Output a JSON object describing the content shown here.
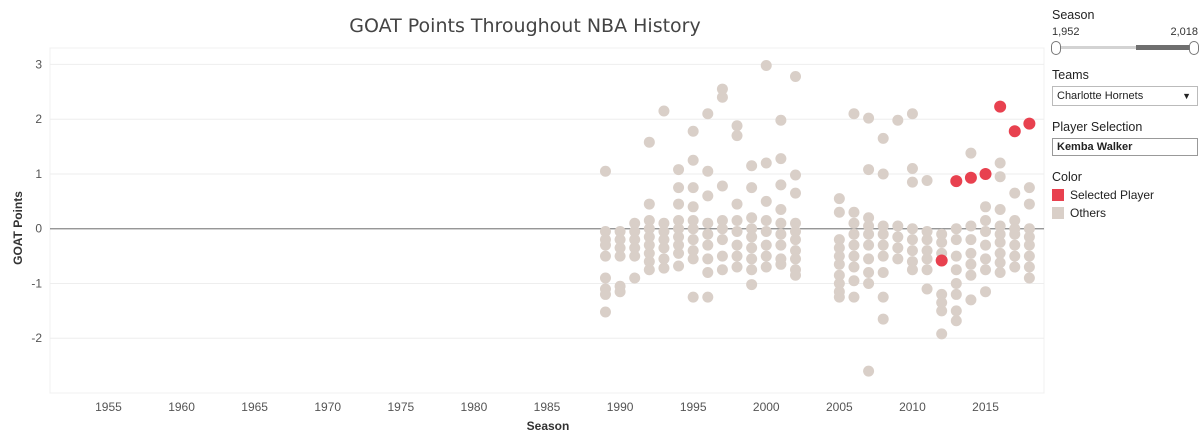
{
  "chart_data": {
    "type": "scatter",
    "title": "GOAT Points Throughout NBA History",
    "xlabel": "Season",
    "ylabel": "GOAT Points",
    "xlim": [
      1951,
      2019
    ],
    "ylim": [
      -3,
      3.3
    ],
    "x_ticks": [
      1955,
      1960,
      1965,
      1970,
      1975,
      1980,
      1985,
      1990,
      1995,
      2000,
      2005,
      2010,
      2015
    ],
    "y_ticks": [
      3,
      2,
      1,
      0,
      -1,
      -2
    ],
    "colors": {
      "selected": "#e8414f",
      "others": "#d9cfc8"
    },
    "series": [
      {
        "name": "Selected Player",
        "points": [
          [
            2012,
            -0.58
          ],
          [
            2013,
            0.87
          ],
          [
            2014,
            0.93
          ],
          [
            2015,
            1.0
          ],
          [
            2016,
            2.23
          ],
          [
            2017,
            1.78
          ],
          [
            2018,
            1.92
          ]
        ]
      },
      {
        "name": "Others",
        "points": [
          [
            1989,
            1.05
          ],
          [
            1989,
            -0.05
          ],
          [
            1989,
            -0.2
          ],
          [
            1989,
            -0.3
          ],
          [
            1989,
            -0.5
          ],
          [
            1989,
            -0.9
          ],
          [
            1989,
            -1.1
          ],
          [
            1989,
            -1.2
          ],
          [
            1989,
            -1.52
          ],
          [
            1990,
            -0.05
          ],
          [
            1990,
            -0.2
          ],
          [
            1990,
            -0.35
          ],
          [
            1990,
            -0.5
          ],
          [
            1990,
            -1.05
          ],
          [
            1990,
            -1.15
          ],
          [
            1991,
            0.1
          ],
          [
            1991,
            -0.05
          ],
          [
            1991,
            -0.2
          ],
          [
            1991,
            -0.35
          ],
          [
            1991,
            -0.5
          ],
          [
            1991,
            -0.9
          ],
          [
            1992,
            1.58
          ],
          [
            1992,
            0.45
          ],
          [
            1992,
            0.15
          ],
          [
            1992,
            0.0
          ],
          [
            1992,
            -0.15
          ],
          [
            1992,
            -0.3
          ],
          [
            1992,
            -0.45
          ],
          [
            1992,
            -0.6
          ],
          [
            1992,
            -0.75
          ],
          [
            1993,
            2.15
          ],
          [
            1993,
            0.1
          ],
          [
            1993,
            -0.05
          ],
          [
            1993,
            -0.2
          ],
          [
            1993,
            -0.35
          ],
          [
            1993,
            -0.55
          ],
          [
            1993,
            -0.72
          ],
          [
            1994,
            1.08
          ],
          [
            1994,
            0.75
          ],
          [
            1994,
            0.45
          ],
          [
            1994,
            0.15
          ],
          [
            1994,
            0.0
          ],
          [
            1994,
            -0.15
          ],
          [
            1994,
            -0.3
          ],
          [
            1994,
            -0.45
          ],
          [
            1994,
            -0.68
          ],
          [
            1995,
            1.78
          ],
          [
            1995,
            1.25
          ],
          [
            1995,
            0.75
          ],
          [
            1995,
            0.4
          ],
          [
            1995,
            0.15
          ],
          [
            1995,
            0.0
          ],
          [
            1995,
            -0.2
          ],
          [
            1995,
            -0.4
          ],
          [
            1995,
            -0.55
          ],
          [
            1995,
            -1.25
          ],
          [
            1996,
            2.1
          ],
          [
            1996,
            1.05
          ],
          [
            1996,
            0.6
          ],
          [
            1996,
            0.1
          ],
          [
            1996,
            -0.1
          ],
          [
            1996,
            -0.3
          ],
          [
            1996,
            -0.55
          ],
          [
            1996,
            -0.8
          ],
          [
            1996,
            -1.25
          ],
          [
            1997,
            2.55
          ],
          [
            1997,
            2.4
          ],
          [
            1997,
            0.78
          ],
          [
            1997,
            0.15
          ],
          [
            1997,
            0.0
          ],
          [
            1997,
            -0.2
          ],
          [
            1997,
            -0.5
          ],
          [
            1997,
            -0.75
          ],
          [
            1998,
            1.88
          ],
          [
            1998,
            1.7
          ],
          [
            1998,
            0.45
          ],
          [
            1998,
            0.15
          ],
          [
            1998,
            -0.05
          ],
          [
            1998,
            -0.3
          ],
          [
            1998,
            -0.5
          ],
          [
            1998,
            -0.7
          ],
          [
            1999,
            1.15
          ],
          [
            1999,
            0.75
          ],
          [
            1999,
            0.2
          ],
          [
            1999,
            0.0
          ],
          [
            1999,
            -0.15
          ],
          [
            1999,
            -0.35
          ],
          [
            1999,
            -0.55
          ],
          [
            1999,
            -0.75
          ],
          [
            1999,
            -1.02
          ],
          [
            2000,
            2.98
          ],
          [
            2000,
            1.2
          ],
          [
            2000,
            0.5
          ],
          [
            2000,
            0.15
          ],
          [
            2000,
            -0.05
          ],
          [
            2000,
            -0.3
          ],
          [
            2000,
            -0.5
          ],
          [
            2000,
            -0.7
          ],
          [
            2001,
            1.98
          ],
          [
            2001,
            1.28
          ],
          [
            2001,
            0.8
          ],
          [
            2001,
            0.35
          ],
          [
            2001,
            0.1
          ],
          [
            2001,
            -0.1
          ],
          [
            2001,
            -0.3
          ],
          [
            2001,
            -0.55
          ],
          [
            2001,
            -0.65
          ],
          [
            2002,
            2.78
          ],
          [
            2002,
            0.98
          ],
          [
            2002,
            0.65
          ],
          [
            2002,
            0.1
          ],
          [
            2002,
            -0.05
          ],
          [
            2002,
            -0.2
          ],
          [
            2002,
            -0.4
          ],
          [
            2002,
            -0.55
          ],
          [
            2002,
            -0.75
          ],
          [
            2002,
            -0.85
          ],
          [
            2005,
            0.55
          ],
          [
            2005,
            0.3
          ],
          [
            2005,
            -0.2
          ],
          [
            2005,
            -0.35
          ],
          [
            2005,
            -0.5
          ],
          [
            2005,
            -0.65
          ],
          [
            2005,
            -0.85
          ],
          [
            2005,
            -1.0
          ],
          [
            2005,
            -1.15
          ],
          [
            2005,
            -1.25
          ],
          [
            2006,
            2.1
          ],
          [
            2006,
            0.3
          ],
          [
            2006,
            0.1
          ],
          [
            2006,
            -0.1
          ],
          [
            2006,
            -0.3
          ],
          [
            2006,
            -0.5
          ],
          [
            2006,
            -0.7
          ],
          [
            2006,
            -0.95
          ],
          [
            2006,
            -1.25
          ],
          [
            2007,
            2.02
          ],
          [
            2007,
            1.08
          ],
          [
            2007,
            0.2
          ],
          [
            2007,
            0.05
          ],
          [
            2007,
            -0.1
          ],
          [
            2007,
            -0.3
          ],
          [
            2007,
            -0.55
          ],
          [
            2007,
            -0.8
          ],
          [
            2007,
            -1.0
          ],
          [
            2007,
            -2.6
          ],
          [
            2008,
            1.65
          ],
          [
            2008,
            1.0
          ],
          [
            2008,
            0.05
          ],
          [
            2008,
            -0.1
          ],
          [
            2008,
            -0.3
          ],
          [
            2008,
            -0.5
          ],
          [
            2008,
            -0.8
          ],
          [
            2008,
            -1.25
          ],
          [
            2008,
            -1.65
          ],
          [
            2009,
            1.98
          ],
          [
            2009,
            0.05
          ],
          [
            2009,
            -0.15
          ],
          [
            2009,
            -0.35
          ],
          [
            2009,
            -0.55
          ],
          [
            2010,
            2.1
          ],
          [
            2010,
            1.1
          ],
          [
            2010,
            0.85
          ],
          [
            2010,
            0.0
          ],
          [
            2010,
            -0.2
          ],
          [
            2010,
            -0.4
          ],
          [
            2010,
            -0.6
          ],
          [
            2010,
            -0.75
          ],
          [
            2011,
            0.88
          ],
          [
            2011,
            -0.05
          ],
          [
            2011,
            -0.2
          ],
          [
            2011,
            -0.4
          ],
          [
            2011,
            -0.55
          ],
          [
            2011,
            -0.75
          ],
          [
            2011,
            -1.1
          ],
          [
            2012,
            -0.1
          ],
          [
            2012,
            -0.25
          ],
          [
            2012,
            -0.45
          ],
          [
            2012,
            -1.2
          ],
          [
            2012,
            -1.35
          ],
          [
            2012,
            -1.5
          ],
          [
            2012,
            -1.92
          ],
          [
            2013,
            0.0
          ],
          [
            2013,
            -0.2
          ],
          [
            2013,
            -0.5
          ],
          [
            2013,
            -0.75
          ],
          [
            2013,
            -1.0
          ],
          [
            2013,
            -1.2
          ],
          [
            2013,
            -1.5
          ],
          [
            2013,
            -1.68
          ],
          [
            2014,
            1.38
          ],
          [
            2014,
            0.05
          ],
          [
            2014,
            -0.2
          ],
          [
            2014,
            -0.45
          ],
          [
            2014,
            -0.65
          ],
          [
            2014,
            -0.85
          ],
          [
            2014,
            -1.3
          ],
          [
            2015,
            0.4
          ],
          [
            2015,
            0.15
          ],
          [
            2015,
            -0.05
          ],
          [
            2015,
            -0.3
          ],
          [
            2015,
            -0.55
          ],
          [
            2015,
            -0.75
          ],
          [
            2015,
            -1.15
          ],
          [
            2016,
            1.2
          ],
          [
            2016,
            0.95
          ],
          [
            2016,
            0.35
          ],
          [
            2016,
            0.05
          ],
          [
            2016,
            -0.1
          ],
          [
            2016,
            -0.25
          ],
          [
            2016,
            -0.45
          ],
          [
            2016,
            -0.62
          ],
          [
            2016,
            -0.8
          ],
          [
            2017,
            0.65
          ],
          [
            2017,
            0.15
          ],
          [
            2017,
            0.0
          ],
          [
            2017,
            -0.1
          ],
          [
            2017,
            -0.3
          ],
          [
            2017,
            -0.5
          ],
          [
            2017,
            -0.7
          ],
          [
            2018,
            0.75
          ],
          [
            2018,
            0.45
          ],
          [
            2018,
            0.0
          ],
          [
            2018,
            -0.15
          ],
          [
            2018,
            -0.3
          ],
          [
            2018,
            -0.5
          ],
          [
            2018,
            -0.7
          ],
          [
            2018,
            -0.9
          ]
        ]
      }
    ]
  },
  "controls": {
    "season": {
      "label": "Season",
      "min_label": "1,952",
      "max_label": "2,018",
      "selected_range": [
        1952,
        2018
      ],
      "slider_fill": [
        0.58,
        1.0
      ]
    },
    "teams": {
      "label": "Teams",
      "value": "Charlotte Hornets"
    },
    "player": {
      "label": "Player Selection",
      "value": "Kemba Walker"
    },
    "legend": {
      "label": "Color",
      "items": [
        "Selected Player",
        "Others"
      ]
    }
  }
}
